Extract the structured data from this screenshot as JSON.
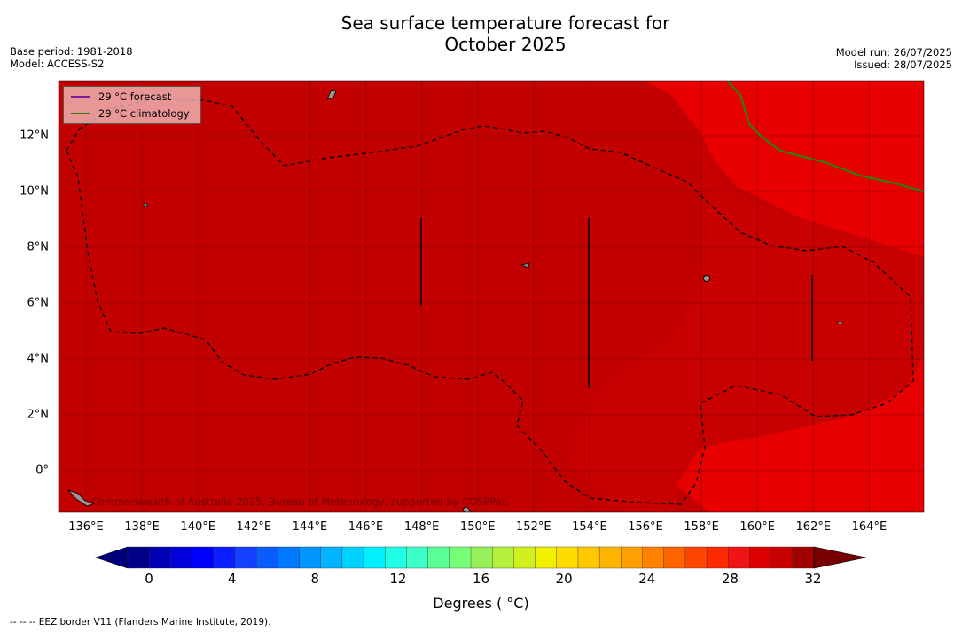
{
  "title_line1": "Sea surface temperature forecast for",
  "title_line2": "October 2025",
  "meta_left": {
    "base_period": "Base period: 1981-2018",
    "model": "Model: ACCESS-S2"
  },
  "meta_right": {
    "model_run": "Model run: 26/07/2025",
    "issued": "Issued: 28/07/2025"
  },
  "lat_labels": [
    "12°N",
    "10°N",
    "8°N",
    "6°N",
    "4°N",
    "2°N",
    "0°"
  ],
  "lon_labels": [
    "136°E",
    "138°E",
    "140°E",
    "142°E",
    "144°E",
    "146°E",
    "148°E",
    "150°E",
    "152°E",
    "154°E",
    "156°E",
    "158°E",
    "160°E",
    "162°E",
    "164°E"
  ],
  "legend": {
    "forecast_label": "29 °C  forecast",
    "climatology_label": "29 °C  climatology",
    "forecast_color": "#7a1a9a",
    "climatology_color": "#2e7d12"
  },
  "copyright": "Commonwealth of Australia 2025, Bureau of Meteorology, supported by COSPPac",
  "colorbar": {
    "ticks": [
      "0",
      "4",
      "8",
      "12",
      "16",
      "20",
      "24",
      "28",
      "32"
    ],
    "label": "Degrees ( °C)",
    "colors": [
      "#00008b",
      "#0000b4",
      "#0000dc",
      "#0000ff",
      "#0a1eff",
      "#1440ff",
      "#0a5cff",
      "#0078ff",
      "#0096ff",
      "#00b4ff",
      "#00d2ff",
      "#00f0ff",
      "#1effe6",
      "#3cffc8",
      "#5aff96",
      "#78ff78",
      "#96f05a",
      "#b4f03c",
      "#d2f01e",
      "#f0f000",
      "#ffdc00",
      "#ffc800",
      "#ffb400",
      "#ffa000",
      "#ff8200",
      "#ff6400",
      "#ff4600",
      "#ff2800",
      "#f01414",
      "#dc0000",
      "#c80000",
      "#a00000"
    ],
    "under_color": "#00007a",
    "over_color": "#780000"
  },
  "map_colors": {
    "base": "#c20000",
    "warm": "#e80000",
    "mid": "#d00000"
  },
  "footnote": "--  --  -- EEZ border V11 (Flanders Marine Institute, 2019)."
}
